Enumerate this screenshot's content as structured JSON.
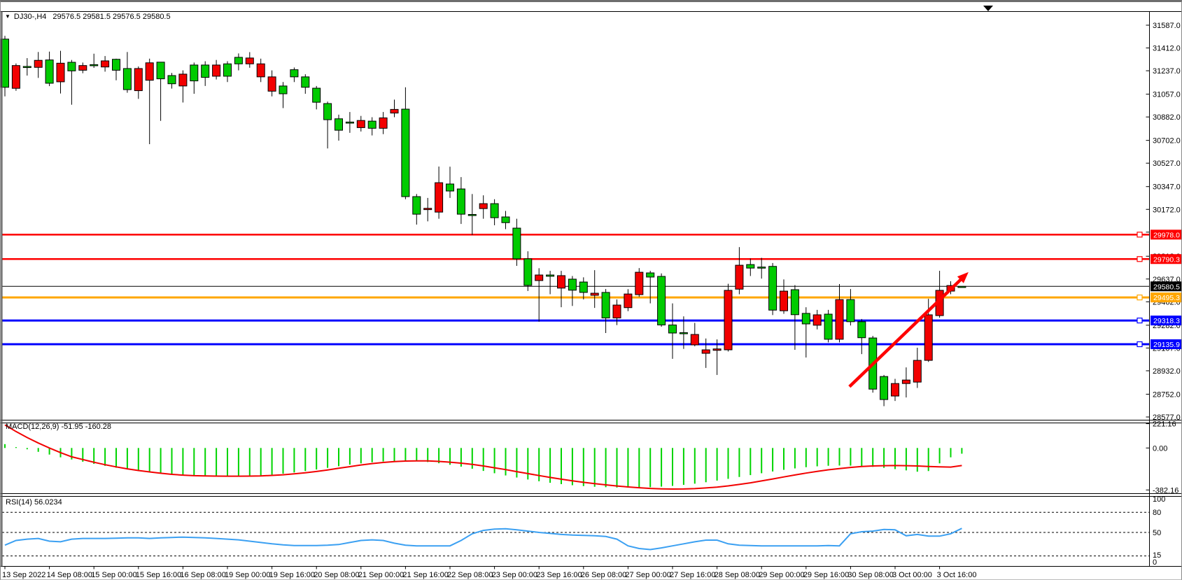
{
  "title": {
    "symbol_label": "DJ30-,H4",
    "ohlc_text": "29576.5 29581.5 29576.5 29580.5"
  },
  "chart_data": {
    "type": "candlestick",
    "symbol": "DJ30-,H4",
    "timeframe": "H4",
    "colors": {
      "bull": "#00CB00",
      "bear": "#F20000",
      "wick": "#000000",
      "macd_hist": "#00D400",
      "macd_signal": "#F20000",
      "rsi_line": "#3BA0F2",
      "line_red": "#FE0000",
      "line_blue": "#0000FE",
      "line_orange": "#FFA600",
      "line_black": "#000000"
    },
    "price_axis": {
      "ticks": [
        "31587.0",
        "31412.0",
        "31237.0",
        "31057.0",
        "30882.0",
        "30702.0",
        "30527.0",
        "30347.0",
        "30172.0",
        "29997.0",
        "29812.0",
        "29637.0",
        "29462.0",
        "29282.0",
        "29107.0",
        "28932.0",
        "28752.0",
        "28577.0"
      ],
      "tick_values": [
        31587,
        31412,
        31237,
        31057,
        30882,
        30702,
        30527,
        30347,
        30172,
        29997,
        29812,
        29637,
        29462,
        29282,
        29107,
        28932,
        28752,
        28577
      ]
    },
    "time_axis": {
      "labels": [
        "13 Sep 2022",
        "14 Sep 08:00",
        "15 Sep 00:00",
        "15 Sep 16:00",
        "16 Sep 08:00",
        "19 Sep 00:00",
        "19 Sep 16:00",
        "20 Sep 08:00",
        "21 Sep 00:00",
        "21 Sep 16:00",
        "22 Sep 08:00",
        "23 Sep 00:00",
        "23 Sep 16:00",
        "26 Sep 08:00",
        "27 Sep 00:00",
        "27 Sep 16:00",
        "28 Sep 08:00",
        "29 Sep 00:00",
        "29 Sep 16:00",
        "30 Sep 08:00",
        "3 Oct 00:00",
        "3 Oct 16:00"
      ],
      "bars_per_label": 4
    },
    "horizontal_lines": [
      {
        "price": 29978.0,
        "label": "29978.0",
        "color": "#FE0000",
        "width": 2.5,
        "handle": true
      },
      {
        "price": 29790.3,
        "label": "29790.3",
        "color": "#FE0000",
        "width": 2.5,
        "handle": true
      },
      {
        "price": 29580.5,
        "label": "29580.5",
        "color": "#000000",
        "width": 1,
        "handle": false
      },
      {
        "price": 29495.3,
        "label": "29495.3",
        "color": "#FFA600",
        "width": 3,
        "handle": true
      },
      {
        "price": 29318.3,
        "label": "29318.3",
        "color": "#0000FE",
        "width": 3,
        "handle": true
      },
      {
        "price": 29135.9,
        "label": "29135.9",
        "color": "#0000FE",
        "width": 3,
        "handle": true
      }
    ],
    "trend_arrow": {
      "from": {
        "bar": 75.9,
        "price": 28810
      },
      "to": {
        "bar": 86.6,
        "price": 29690
      },
      "color": "#FE0000"
    },
    "candles": [
      [
        31110,
        31505,
        31040,
        31480
      ],
      [
        31277,
        31293,
        31083,
        31102
      ],
      [
        31262,
        31334,
        31200,
        31270
      ],
      [
        31317,
        31381,
        31182,
        31263
      ],
      [
        31141,
        31384,
        31119,
        31320
      ],
      [
        31295,
        31390,
        31062,
        31152
      ],
      [
        31236,
        31320,
        30976,
        31302
      ],
      [
        31277,
        31300,
        31218,
        31241
      ],
      [
        31278,
        31368,
        31259,
        31284
      ],
      [
        31313,
        31350,
        31230,
        31266
      ],
      [
        31241,
        31330,
        31164,
        31325
      ],
      [
        31092,
        31381,
        31068,
        31254
      ],
      [
        31254,
        31270,
        31021,
        31084
      ],
      [
        31298,
        31330,
        30673,
        31164
      ],
      [
        31175,
        31303,
        30852,
        31303
      ],
      [
        31137,
        31220,
        31100,
        31200
      ],
      [
        31211,
        31240,
        30993,
        31120
      ],
      [
        31159,
        31300,
        31060,
        31281
      ],
      [
        31186,
        31310,
        31120,
        31281
      ],
      [
        31281,
        31320,
        31170,
        31195
      ],
      [
        31195,
        31310,
        31150,
        31290
      ],
      [
        31290,
        31370,
        31240,
        31340
      ],
      [
        31335,
        31380,
        31260,
        31290
      ],
      [
        31290,
        31330,
        31150,
        31190
      ],
      [
        31190,
        31240,
        31040,
        31080
      ],
      [
        31060,
        31150,
        30950,
        31120
      ],
      [
        31190,
        31262,
        31150,
        31245
      ],
      [
        31110,
        31210,
        31060,
        31190
      ],
      [
        30995,
        31120,
        30940,
        31103
      ],
      [
        30861,
        31000,
        30640,
        30985
      ],
      [
        30780,
        30900,
        30700,
        30868
      ],
      [
        30840,
        30920,
        30760,
        30843
      ],
      [
        30855,
        30890,
        30770,
        30800
      ],
      [
        30795,
        30880,
        30740,
        30850
      ],
      [
        30875,
        30920,
        30750,
        30795
      ],
      [
        30940,
        31015,
        30880,
        30912
      ],
      [
        30270,
        31110,
        30250,
        30942
      ],
      [
        30135,
        30290,
        30055,
        30270
      ],
      [
        30180,
        30260,
        30080,
        30170
      ],
      [
        30377,
        30501,
        30100,
        30151
      ],
      [
        30313,
        30500,
        30260,
        30367
      ],
      [
        30135,
        30420,
        30060,
        30329
      ],
      [
        30130,
        30290,
        29975,
        30133
      ],
      [
        30216,
        30280,
        30100,
        30178
      ],
      [
        30108,
        30250,
        30050,
        30216
      ],
      [
        30070,
        30160,
        30020,
        30114
      ],
      [
        29792,
        30100,
        29738,
        30028
      ],
      [
        29588,
        29850,
        29545,
        29792
      ],
      [
        29668,
        29720,
        29309,
        29625
      ],
      [
        29658,
        29700,
        29520,
        29668
      ],
      [
        29663,
        29700,
        29420,
        29567
      ],
      [
        29551,
        29660,
        29430,
        29636
      ],
      [
        29534,
        29650,
        29480,
        29614
      ],
      [
        29528,
        29705,
        29415,
        29512
      ],
      [
        29338,
        29560,
        29222,
        29534
      ],
      [
        29437,
        29480,
        29283,
        29338
      ],
      [
        29522,
        29559,
        29390,
        29417
      ],
      [
        29689,
        29721,
        29500,
        29517
      ],
      [
        29652,
        29700,
        29450,
        29684
      ],
      [
        29284,
        29680,
        29270,
        29657
      ],
      [
        29222,
        29450,
        29024,
        29284
      ],
      [
        29222,
        29350,
        29100,
        29225
      ],
      [
        29211,
        29300,
        29120,
        29131
      ],
      [
        29093,
        29180,
        28954,
        29066
      ],
      [
        29100,
        29173,
        28900,
        29089
      ],
      [
        29550,
        29600,
        29080,
        29093
      ],
      [
        29743,
        29882,
        29520,
        29559
      ],
      [
        29721,
        29795,
        29660,
        29748
      ],
      [
        29727,
        29800,
        29640,
        29729
      ],
      [
        29398,
        29760,
        29360,
        29734
      ],
      [
        29544,
        29634,
        29370,
        29393
      ],
      [
        29363,
        29590,
        29093,
        29555
      ],
      [
        29292,
        29420,
        29034,
        29373
      ],
      [
        29362,
        29400,
        29250,
        29282
      ],
      [
        29174,
        29400,
        29150,
        29367
      ],
      [
        29479,
        29598,
        29150,
        29174
      ],
      [
        29309,
        29560,
        29280,
        29479
      ],
      [
        29186,
        29330,
        29060,
        29309
      ],
      [
        28791,
        29200,
        28764,
        29184
      ],
      [
        28711,
        28900,
        28660,
        28888
      ],
      [
        28834,
        28870,
        28700,
        28738
      ],
      [
        28861,
        28958,
        28727,
        28834
      ],
      [
        29012,
        29109,
        28800,
        28845
      ],
      [
        29362,
        29485,
        29000,
        29012
      ],
      [
        29550,
        29700,
        29340,
        29356
      ],
      [
        29587,
        29620,
        29520,
        29544
      ],
      [
        29576.5,
        29581.5,
        29576.5,
        29580.5
      ]
    ],
    "indicators": {
      "macd": {
        "name": "MACD(12,26,9)",
        "values_text": "-51.95 -160.28",
        "label": "MACD(12,26,9) -51.95 -160.28",
        "axis_labels": [
          "221.16",
          "0.00",
          "-382.16"
        ],
        "axis_values": [
          221.16,
          0,
          -382.16
        ],
        "histogram": [
          35,
          8,
          -12,
          -35,
          -60,
          -85,
          -105,
          -125,
          -145,
          -163,
          -180,
          -196,
          -210,
          -222,
          -232,
          -240,
          -247,
          -252,
          -256,
          -258,
          -259,
          -258,
          -255,
          -250,
          -243,
          -234,
          -223,
          -210,
          -196,
          -181,
          -166,
          -152,
          -140,
          -130,
          -123,
          -119,
          -118,
          -121,
          -128,
          -139,
          -153,
          -170,
          -189,
          -209,
          -230,
          -250,
          -269,
          -287,
          -303,
          -317,
          -329,
          -339,
          -347,
          -353,
          -357,
          -360,
          -361,
          -360,
          -357,
          -352,
          -345,
          -336,
          -325,
          -312,
          -297,
          -281,
          -264,
          -247,
          -230,
          -214,
          -199,
          -186,
          -175,
          -167,
          -162,
          -160,
          -161,
          -165,
          -172,
          -181,
          -192,
          -204,
          -216,
          -210,
          -140,
          -85,
          -52
        ],
        "signal": [
          210,
          150,
          95,
          45,
          0,
          -42,
          -80,
          -105,
          -130,
          -152,
          -172,
          -190,
          -205,
          -218,
          -230,
          -240,
          -247,
          -252,
          -255,
          -256,
          -257,
          -257,
          -256,
          -254,
          -250,
          -244,
          -236,
          -226,
          -214,
          -200,
          -185,
          -170,
          -155,
          -142,
          -132,
          -124,
          -119,
          -117,
          -118,
          -122,
          -129,
          -138,
          -150,
          -164,
          -180,
          -197,
          -215,
          -233,
          -251,
          -268,
          -284,
          -299,
          -313,
          -325,
          -336,
          -346,
          -355,
          -362,
          -368,
          -372,
          -374,
          -373,
          -370,
          -364,
          -356,
          -345,
          -332,
          -317,
          -300,
          -282,
          -264,
          -246,
          -229,
          -213,
          -199,
          -187,
          -177,
          -169,
          -164,
          -161,
          -160,
          -161,
          -164,
          -168,
          -172,
          -174,
          -160
        ]
      },
      "rsi": {
        "name": "RSI(14)",
        "value_text": "56.0234",
        "label": "RSI(14) 56.0234",
        "axis_labels": [
          "100",
          "80",
          "50",
          "15",
          "0"
        ],
        "levels": [
          100,
          80,
          50,
          15,
          0
        ],
        "dashed_levels": [
          80,
          50,
          15
        ],
        "values": [
          31,
          38,
          40,
          41,
          37,
          36,
          40,
          41,
          41,
          41,
          41.5,
          42,
          42,
          41,
          42,
          42.5,
          43,
          42.5,
          42,
          41,
          40,
          39,
          37,
          35,
          33,
          31.5,
          30.5,
          30.5,
          30.5,
          31,
          32,
          35,
          38,
          39,
          38,
          34,
          31,
          30,
          30,
          30,
          30,
          38,
          48,
          53,
          55,
          55.5,
          54,
          52,
          50,
          48.5,
          47,
          46,
          45.5,
          45,
          44,
          40,
          30,
          26,
          24.5,
          27,
          30,
          33,
          36,
          38.5,
          38.5,
          33,
          31,
          30.5,
          30,
          30,
          30,
          30,
          30,
          30,
          30.5,
          30,
          48,
          51,
          52,
          54.5,
          54,
          45,
          47,
          44.5,
          44.5,
          48,
          56
        ]
      }
    }
  }
}
